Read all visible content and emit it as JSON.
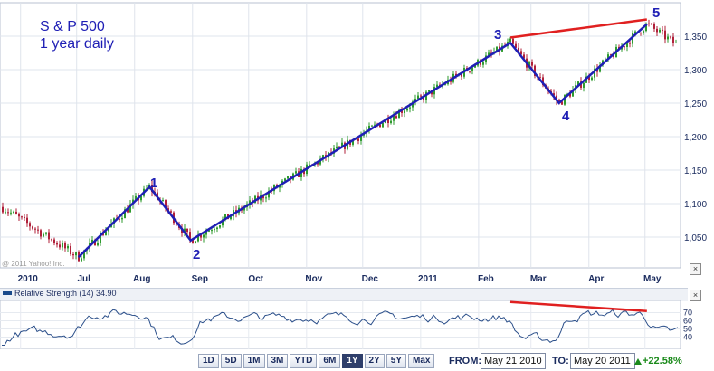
{
  "overlay": {
    "title_line1": "S & P 500",
    "title_line2": "1 year daily"
  },
  "watermark": "@ 2011 Yahoo! Inc.",
  "colors": {
    "wave_line": "#1f1fb5",
    "divergence_line": "#e02020",
    "candle_up": "#2e9a2e",
    "candle_down": "#b0203a",
    "rsi_line": "#2b4f8a"
  },
  "chart_data": [
    {
      "type": "candlestick",
      "x_labels": [
        "2010",
        "Jul",
        "Aug",
        "Sep",
        "Oct",
        "Nov",
        "Dec",
        "2011",
        "Feb",
        "Mar",
        "Apr",
        "May"
      ],
      "y_ticks": [
        "1,050",
        "1,100",
        "1,150",
        "1,200",
        "1,250",
        "1,300",
        "1,350"
      ],
      "ylim": [
        1000,
        1380
      ],
      "x_range": [
        "May 21 2010",
        "May 20 2011"
      ],
      "grid": true,
      "wave_points": [
        {
          "label": "",
          "date": "2010-07-02",
          "value": 1020
        },
        {
          "label": "1",
          "date": "2010-08-09",
          "value": 1125
        },
        {
          "label": "2",
          "date": "2010-08-31",
          "value": 1045
        },
        {
          "label": "3",
          "date": "2011-02-18",
          "value": 1340
        },
        {
          "label": "4",
          "date": "2011-03-16",
          "value": 1250
        },
        {
          "label": "5",
          "date": "2011-05-02",
          "value": 1368
        }
      ],
      "divergence_line": [
        {
          "date": "2011-02-18",
          "value": 1348
        },
        {
          "date": "2011-05-02",
          "value": 1375
        }
      ]
    },
    {
      "type": "line",
      "title": "Relative Strength (14) 34.90",
      "y_ticks": [
        "70",
        "60",
        "50",
        "40"
      ],
      "ylim": [
        25,
        85
      ],
      "divergence_line": [
        {
          "date": "2011-02-18",
          "value": 83
        },
        {
          "date": "2011-05-02",
          "value": 72
        }
      ]
    }
  ],
  "controls": {
    "ranges": [
      "1D",
      "5D",
      "1M",
      "3M",
      "YTD",
      "6M",
      "1Y",
      "2Y",
      "5Y",
      "Max"
    ],
    "selected_range": "1Y",
    "from_label": "FROM:",
    "from_value": "May 21 2010",
    "to_label": "TO:",
    "to_value": "May 20 2011",
    "change": "+22.58%",
    "close_glyph": "×"
  }
}
